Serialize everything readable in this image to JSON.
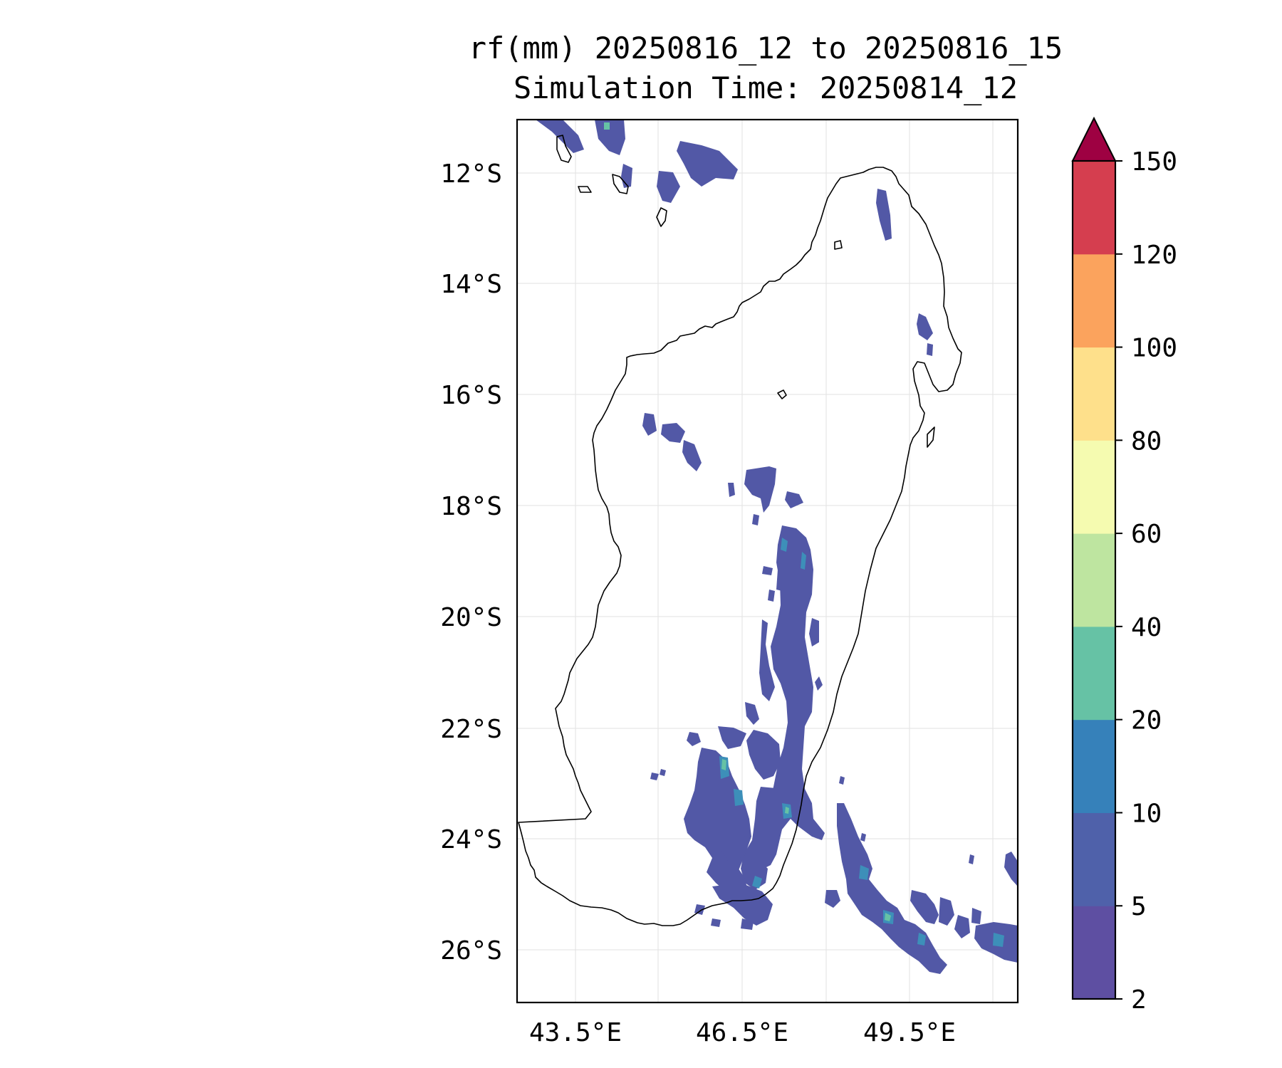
{
  "title": {
    "line1": "rf(mm) 20250816_12 to 20250816_15",
    "line2": "Simulation Time: 20250814_12"
  },
  "map": {
    "region": "Madagascar",
    "lon_ticks": [
      "43.5°E",
      "46.5°E",
      "49.5°E"
    ],
    "lat_ticks": [
      "12°S",
      "14°S",
      "16°S",
      "18°S",
      "20°S",
      "22°S",
      "24°S",
      "26°S"
    ],
    "gridlines": true
  },
  "colorbar": {
    "levels": [
      "2",
      "5",
      "10",
      "20",
      "40",
      "60",
      "80",
      "100",
      "120",
      "150"
    ],
    "colors": [
      "#5e4fa2",
      "#4f61aa",
      "#3681ba",
      "#66c2a5",
      "#bee5a0",
      "#f5fbb0",
      "#fee08b",
      "#fba35d",
      "#d53e4f",
      "#9e0142"
    ],
    "extend": "max"
  }
}
